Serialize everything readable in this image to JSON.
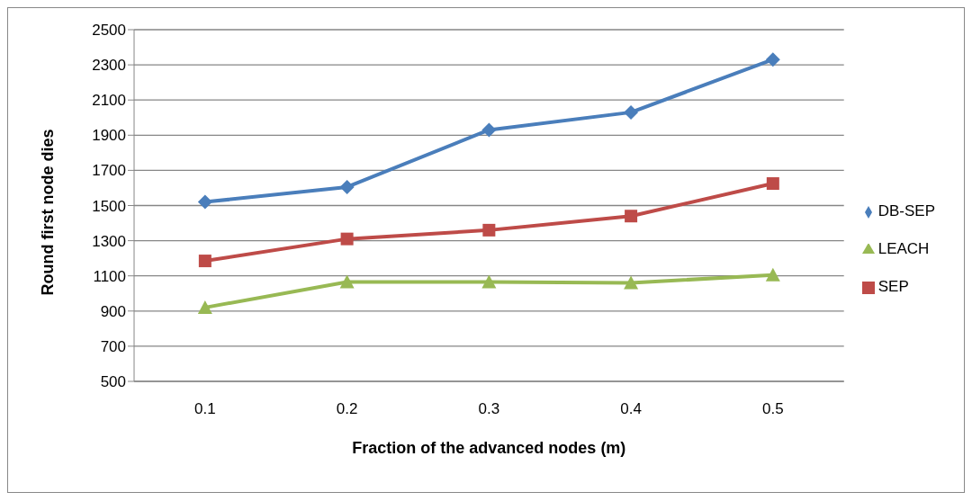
{
  "chart_data": {
    "type": "line",
    "xlabel": "Fraction of the advanced nodes (m)",
    "ylabel": "Round first node dies",
    "categories": [
      "0.1",
      "0.2",
      "0.3",
      "0.4",
      "0.5"
    ],
    "series": [
      {
        "name": "DB-SEP",
        "color": "#4a7ebb",
        "marker": "diamond",
        "values": [
          1520,
          1605,
          1930,
          2030,
          2330
        ]
      },
      {
        "name": "SEP",
        "color": "#be4b48",
        "marker": "square",
        "values": [
          1185,
          1310,
          1360,
          1440,
          1625
        ]
      },
      {
        "name": "LEACH",
        "color": "#98b954",
        "marker": "triangle",
        "values": [
          920,
          1065,
          1065,
          1060,
          1105
        ]
      }
    ],
    "ylim": [
      500,
      2500
    ],
    "yticks": [
      500,
      700,
      900,
      1100,
      1300,
      1500,
      1700,
      1900,
      2100,
      2300,
      2500
    ],
    "grid": "y",
    "legend": "right",
    "line_style": "solid"
  }
}
